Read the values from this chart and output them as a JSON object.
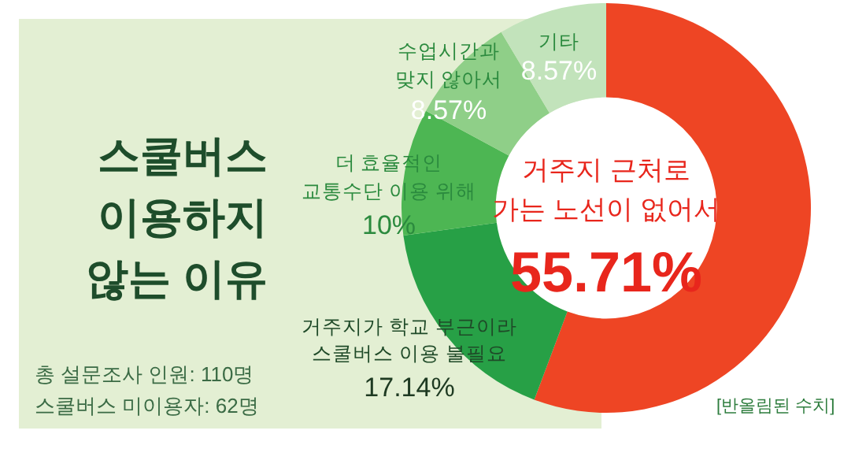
{
  "chart_data": {
    "type": "donut",
    "title": "스쿨버스\n이용하지\n않는 이유",
    "categories": [
      "거주지 근처로\n가는 노선이 없어서",
      "거주지가 학교 부근이라\n스쿨버스 이용 불필요",
      "더 효율적인\n교통수단 이용 위해",
      "수업시간과\n맞지 않아서",
      "기타"
    ],
    "values": [
      55.71,
      17.14,
      10,
      8.57,
      8.57
    ],
    "value_labels": [
      "55.71%",
      "17.14%",
      "10%",
      "8.57%",
      "8.57%"
    ],
    "colors": [
      "#ee4524",
      "#27a046",
      "#4db653",
      "#8fcf88",
      "#c2e3bb"
    ],
    "legend": false,
    "annotations": [
      "총 설문조사 인원: 110명\n스쿨버스 미이용자: 62명",
      "[반올림된 수치]"
    ]
  }
}
